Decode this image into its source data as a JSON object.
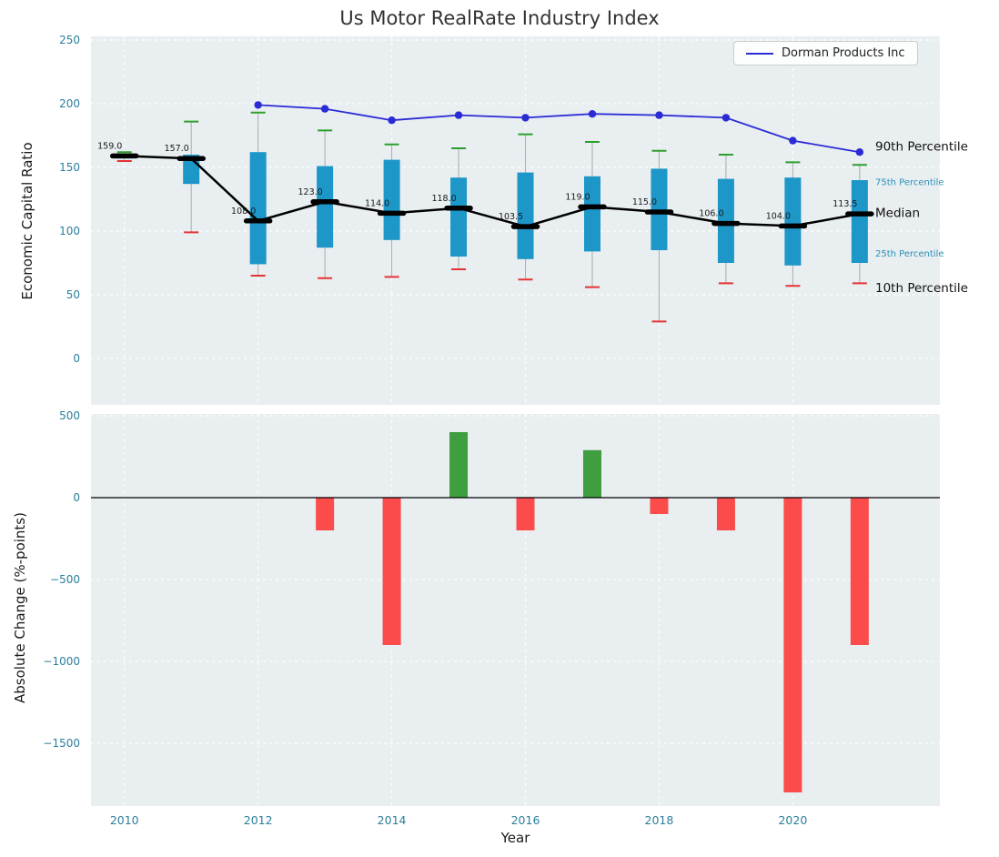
{
  "chart_data": {
    "type": "combo",
    "title": "Us Motor RealRate Industry Index",
    "top_panel": {
      "type": "box-line",
      "ylabel": "Economic Capital Ratio",
      "yticks": [
        0,
        50,
        100,
        150,
        200,
        250
      ],
      "ylim": [
        -36,
        253
      ],
      "grid": "on",
      "years": [
        2010,
        2011,
        2012,
        2013,
        2014,
        2015,
        2016,
        2017,
        2018,
        2019,
        2020,
        2021
      ],
      "median": [
        159.0,
        157.0,
        108.0,
        123.0,
        114.0,
        118.0,
        103.5,
        119.0,
        115.0,
        106.0,
        104.0,
        113.5
      ],
      "p90": [
        162,
        186,
        193,
        179,
        168,
        165,
        176,
        170,
        163,
        160,
        154,
        152
      ],
      "p75": [
        160,
        160,
        162,
        151,
        156,
        142,
        146,
        143,
        149,
        141,
        142,
        140
      ],
      "p25": [
        157,
        137,
        74,
        87,
        93,
        80,
        78,
        84,
        85,
        75,
        73,
        75
      ],
      "p10": [
        155,
        99,
        65,
        63,
        64,
        70,
        62,
        56,
        29,
        59,
        57,
        59
      ],
      "dorman": {
        "name": "Dorman Products Inc",
        "years": [
          2012,
          2013,
          2014,
          2015,
          2016,
          2017,
          2018,
          2019,
          2020,
          2021
        ],
        "values": [
          199,
          196,
          187,
          191,
          189,
          192,
          191,
          189,
          171,
          162
        ]
      },
      "right_labels": [
        {
          "text": "90th Percentile",
          "value": 166,
          "size": "large"
        },
        {
          "text": "75th Percentile",
          "value": 139,
          "size": "small"
        },
        {
          "text": "Median",
          "value": 114,
          "size": "large"
        },
        {
          "text": "25th Percentile",
          "value": 83,
          "size": "small"
        },
        {
          "text": "10th Percentile",
          "value": 55,
          "size": "large"
        }
      ]
    },
    "bottom_panel": {
      "type": "bar",
      "ylabel": "Absolute Change (%-points)",
      "xlabel": "Year",
      "yticks": [
        500,
        0,
        -500,
        -1000,
        -1500
      ],
      "ylim": [
        -1890,
        515
      ],
      "xticks": [
        2010,
        2012,
        2014,
        2016,
        2018,
        2020
      ],
      "grid": "on",
      "years": [
        2013,
        2014,
        2015,
        2016,
        2017,
        2018,
        2019,
        2020,
        2021
      ],
      "values": [
        -200,
        -900,
        400,
        -200,
        290,
        -100,
        -200,
        -1800,
        -900
      ]
    },
    "colors": {
      "plot_bg": "#e9eef1",
      "grid": "#ffffff",
      "box_fill": "#1d96c8",
      "median": "#000000",
      "p90_cap": "#2ca02c",
      "p10_cap": "#e53333",
      "whisker": "#aaaaaa",
      "dorman_line": "#2b2bd5",
      "bar_negative": "#fb4b4b",
      "bar_positive": "#3f9e3f",
      "tick_label": "#2a7f9d",
      "percentile_small_label": "#2a90b5",
      "annotation": "#1a1a1a"
    }
  }
}
